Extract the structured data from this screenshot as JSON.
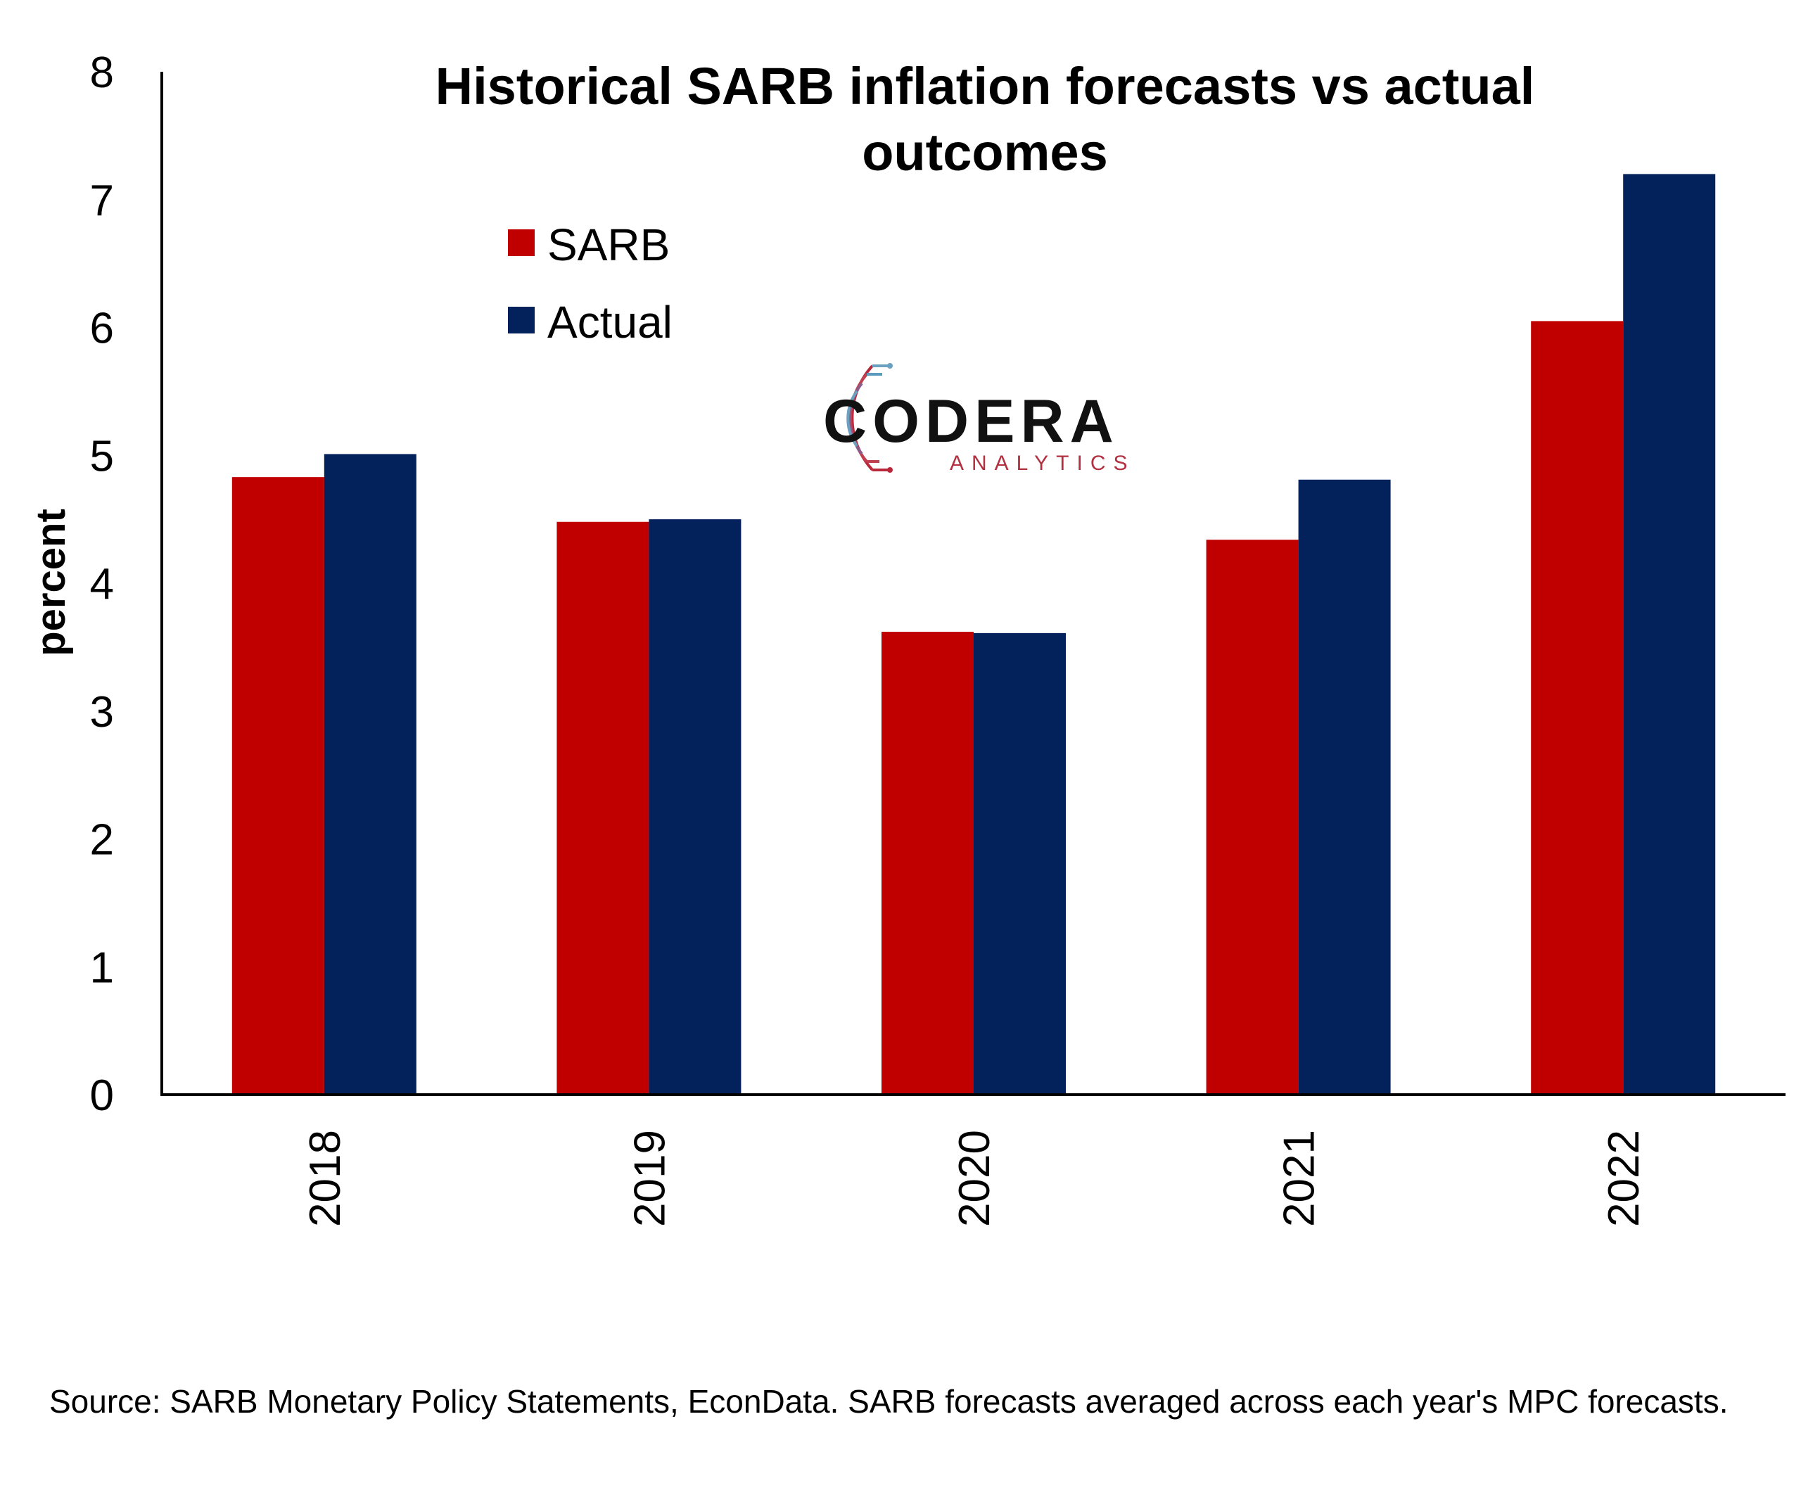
{
  "chart_data": {
    "type": "bar",
    "title": "Historical SARB inflation forecasts vs actual outcomes",
    "title_lines": [
      "Historical SARB inflation forecasts vs actual",
      "outcomes"
    ],
    "xlabel": "",
    "ylabel": "percent",
    "ylim": [
      0,
      8
    ],
    "yticks": [
      "0",
      "1",
      "2",
      "3",
      "4",
      "5",
      "6",
      "7",
      "8"
    ],
    "categories": [
      "2018",
      "2019",
      "2020",
      "2021",
      "2022"
    ],
    "series": [
      {
        "name": "SARB",
        "color": "#c00000",
        "values": [
          4.83,
          4.48,
          3.62,
          4.34,
          6.05
        ]
      },
      {
        "name": "Actual",
        "color": "#03215a",
        "values": [
          5.01,
          4.5,
          3.61,
          4.81,
          7.2
        ]
      }
    ],
    "grid": false,
    "legend_position": "top-left"
  },
  "logo": {
    "name": "CODERA",
    "tagline": "ANALYTICS"
  },
  "source_note": "Source: SARB Monetary Policy Statements, EconData. SARB forecasts averaged across each year's MPC forecasts."
}
